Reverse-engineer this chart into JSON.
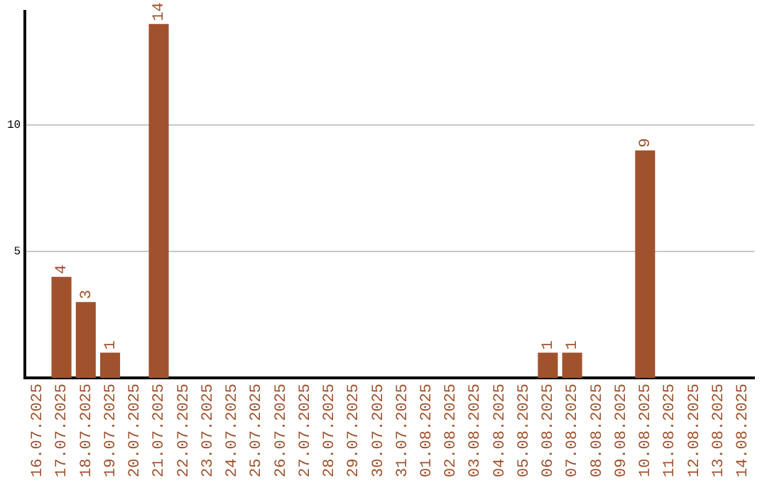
{
  "chart_data": {
    "type": "bar",
    "categories": [
      "16.07.2025",
      "17.07.2025",
      "18.07.2025",
      "19.07.2025",
      "20.07.2025",
      "21.07.2025",
      "22.07.2025",
      "23.07.2025",
      "24.07.2025",
      "25.07.2025",
      "26.07.2025",
      "27.07.2025",
      "28.07.2025",
      "29.07.2025",
      "30.07.2025",
      "31.07.2025",
      "01.08.2025",
      "02.08.2025",
      "03.08.2025",
      "04.08.2025",
      "05.08.2025",
      "06.08.2025",
      "07.08.2025",
      "08.08.2025",
      "09.08.2025",
      "10.08.2025",
      "11.08.2025",
      "12.08.2025",
      "13.08.2025",
      "14.08.2025"
    ],
    "values": [
      0,
      4,
      3,
      1,
      0,
      14,
      0,
      0,
      0,
      0,
      0,
      0,
      0,
      0,
      0,
      0,
      0,
      0,
      0,
      0,
      0,
      1,
      1,
      0,
      0,
      9,
      0,
      0,
      0,
      0
    ],
    "value_labels": [
      null,
      "4",
      "3",
      "1",
      null,
      "14",
      null,
      null,
      null,
      null,
      null,
      null,
      null,
      null,
      null,
      null,
      null,
      null,
      null,
      null,
      null,
      "1",
      "1",
      null,
      null,
      "9",
      null,
      null,
      null,
      null
    ],
    "color": "#a0522d",
    "ylim": [
      0,
      14.5
    ],
    "yticks": [
      5,
      10
    ],
    "grid": "y",
    "legend": false
  }
}
